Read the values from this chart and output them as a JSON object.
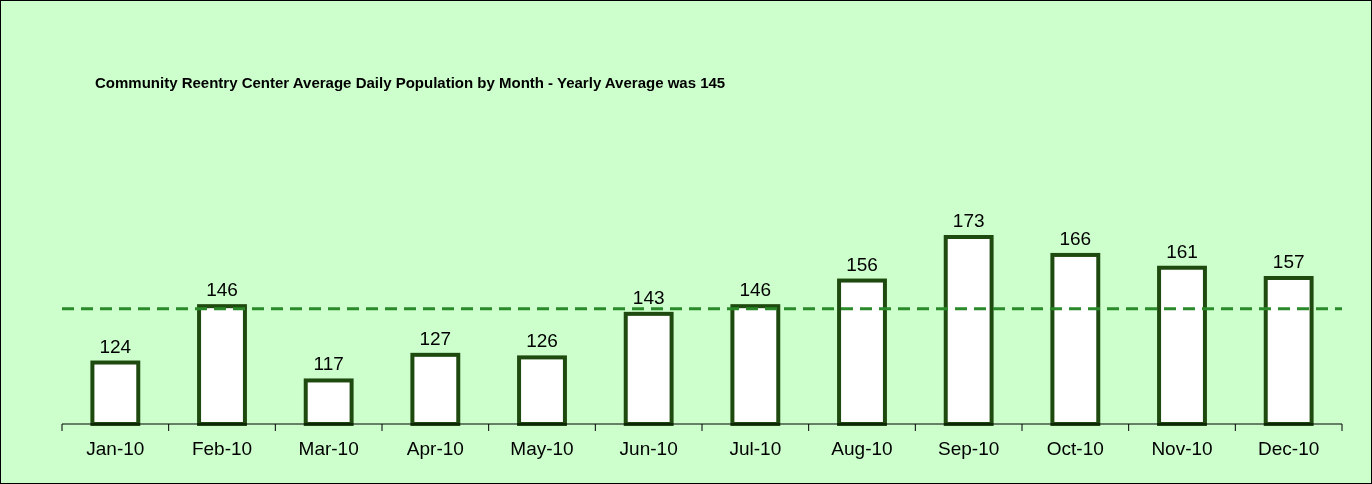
{
  "chart_data": {
    "type": "bar",
    "title": "Community Reentry Center Average Daily Population by Month - Yearly Average was 145",
    "categories": [
      "Jan-10",
      "Feb-10",
      "Mar-10",
      "Apr-10",
      "May-10",
      "Jun-10",
      "Jul-10",
      "Aug-10",
      "Sep-10",
      "Oct-10",
      "Nov-10",
      "Dec-10"
    ],
    "values": [
      124,
      146,
      117,
      127,
      126,
      143,
      146,
      156,
      173,
      166,
      161,
      157
    ],
    "color": "#1f4a0f",
    "tick_labels": "x",
    "data_labels": true,
    "ylim": [
      100,
      173
    ],
    "ref_lines": [
      {
        "axis": "y",
        "value": 145,
        "label": null,
        "color": "#2a8a2a",
        "line_style": "dashed"
      }
    ]
  }
}
